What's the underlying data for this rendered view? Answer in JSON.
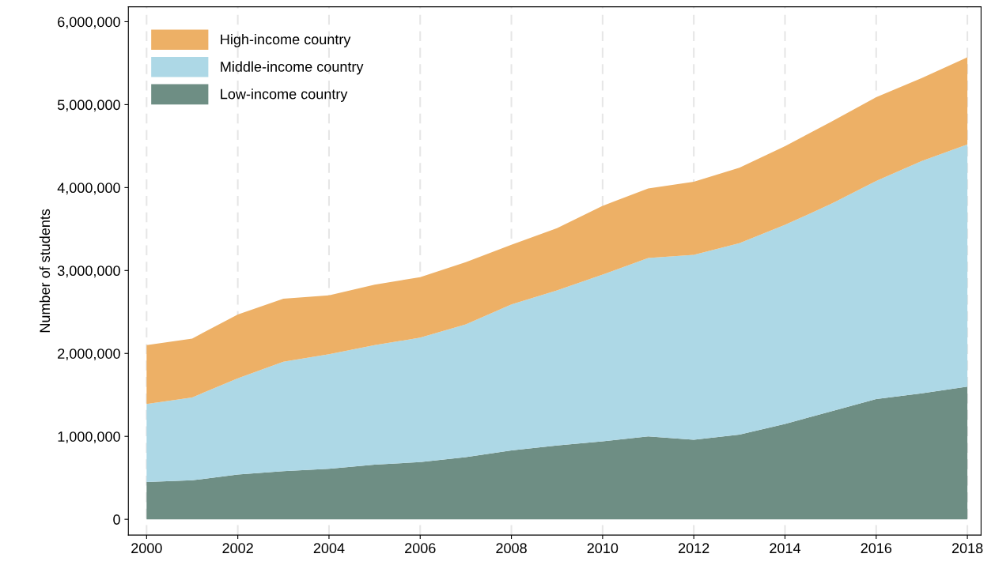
{
  "chart_data": {
    "type": "area",
    "stacked": true,
    "ylabel": "Number of students",
    "x": [
      2000,
      2001,
      2002,
      2003,
      2004,
      2005,
      2006,
      2007,
      2008,
      2009,
      2010,
      2011,
      2012,
      2013,
      2014,
      2015,
      2016,
      2017,
      2018
    ],
    "series": [
      {
        "name": "Low-income country",
        "color": "#6e8e84",
        "values": [
          450000,
          470000,
          540000,
          580000,
          610000,
          660000,
          690000,
          750000,
          830000,
          890000,
          940000,
          1000000,
          960000,
          1020000,
          1150000,
          1300000,
          1450000,
          1520000,
          1600000
        ]
      },
      {
        "name": "Middle-income country",
        "color": "#add8e6",
        "values": [
          940000,
          1000000,
          1160000,
          1320000,
          1380000,
          1440000,
          1500000,
          1600000,
          1760000,
          1870000,
          2010000,
          2150000,
          2230000,
          2310000,
          2400000,
          2500000,
          2630000,
          2800000,
          2920000
        ]
      },
      {
        "name": "High-income country",
        "color": "#edb066",
        "values": [
          710000,
          710000,
          770000,
          760000,
          710000,
          730000,
          730000,
          750000,
          720000,
          750000,
          830000,
          840000,
          880000,
          910000,
          950000,
          990000,
          1010000,
          1000000,
          1050000
        ]
      }
    ],
    "xlim": [
      1999.6,
      2018.3
    ],
    "xticks": [
      2000,
      2002,
      2004,
      2006,
      2008,
      2010,
      2012,
      2014,
      2016,
      2018
    ],
    "ylim": [
      -190000,
      6180000
    ],
    "yticks": [
      {
        "value": 0,
        "label": "0"
      },
      {
        "value": 1000000,
        "label": "1,000,000"
      },
      {
        "value": 2000000,
        "label": "2,000,000"
      },
      {
        "value": 3000000,
        "label": "3,000,000"
      },
      {
        "value": 4000000,
        "label": "4,000,000"
      },
      {
        "value": 5000000,
        "label": "5,000,000"
      },
      {
        "value": 6000000,
        "label": "6,000,000"
      }
    ],
    "grid": "x",
    "legend": "top left"
  }
}
